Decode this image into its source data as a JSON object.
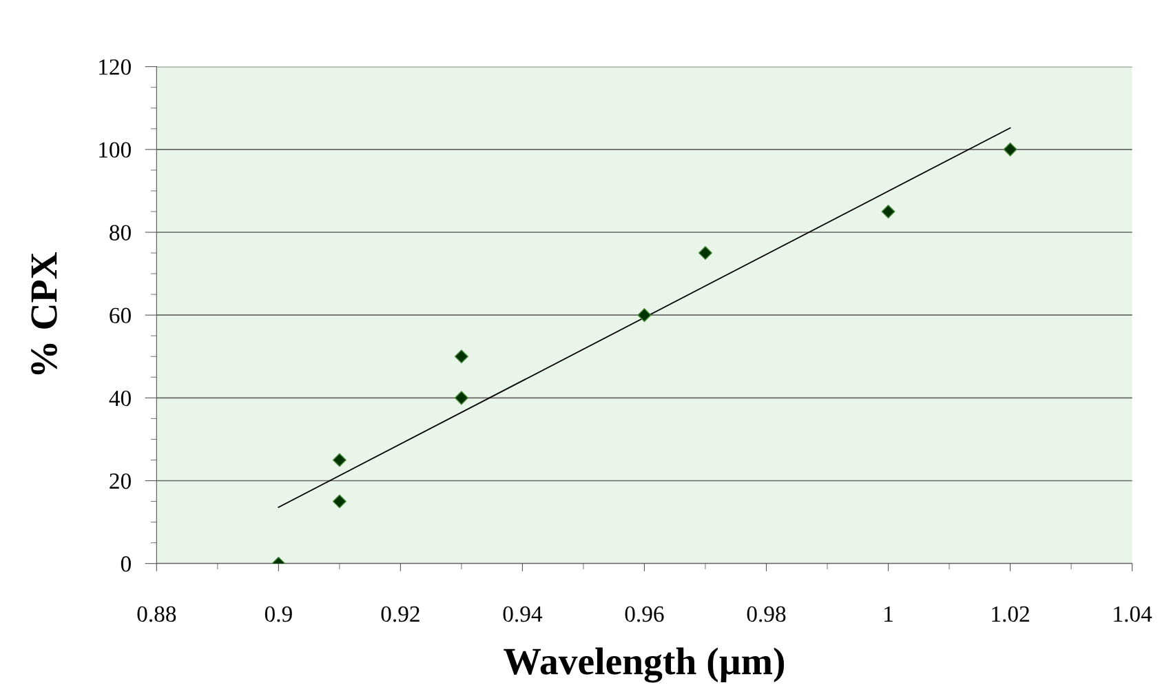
{
  "chart_data": {
    "type": "scatter",
    "xlabel": "Wavelength (µm)",
    "ylabel": "% CPX",
    "series": [
      {
        "color": "#003300",
        "marker": "diamond",
        "x": [
          0.9,
          0.91,
          0.91,
          0.93,
          0.93,
          0.96,
          0.97,
          1.0,
          1.02
        ],
        "values": [
          0,
          25,
          15,
          50,
          40,
          60,
          75,
          85,
          100
        ]
      },
      {
        "type": "line",
        "color": "#000000",
        "marker": "none",
        "x": [
          0.9,
          1.02
        ],
        "values": [
          13.6,
          105.2
        ]
      }
    ],
    "xlim": [
      0.88,
      1.04
    ],
    "xticks": [
      0.88,
      0.9,
      0.92,
      0.94,
      0.96,
      0.98,
      1,
      1.02,
      1.04
    ],
    "ylim": [
      0,
      120
    ],
    "yticks": [
      0,
      20,
      40,
      60,
      80,
      100,
      120
    ],
    "grid": "y",
    "legend": false
  }
}
